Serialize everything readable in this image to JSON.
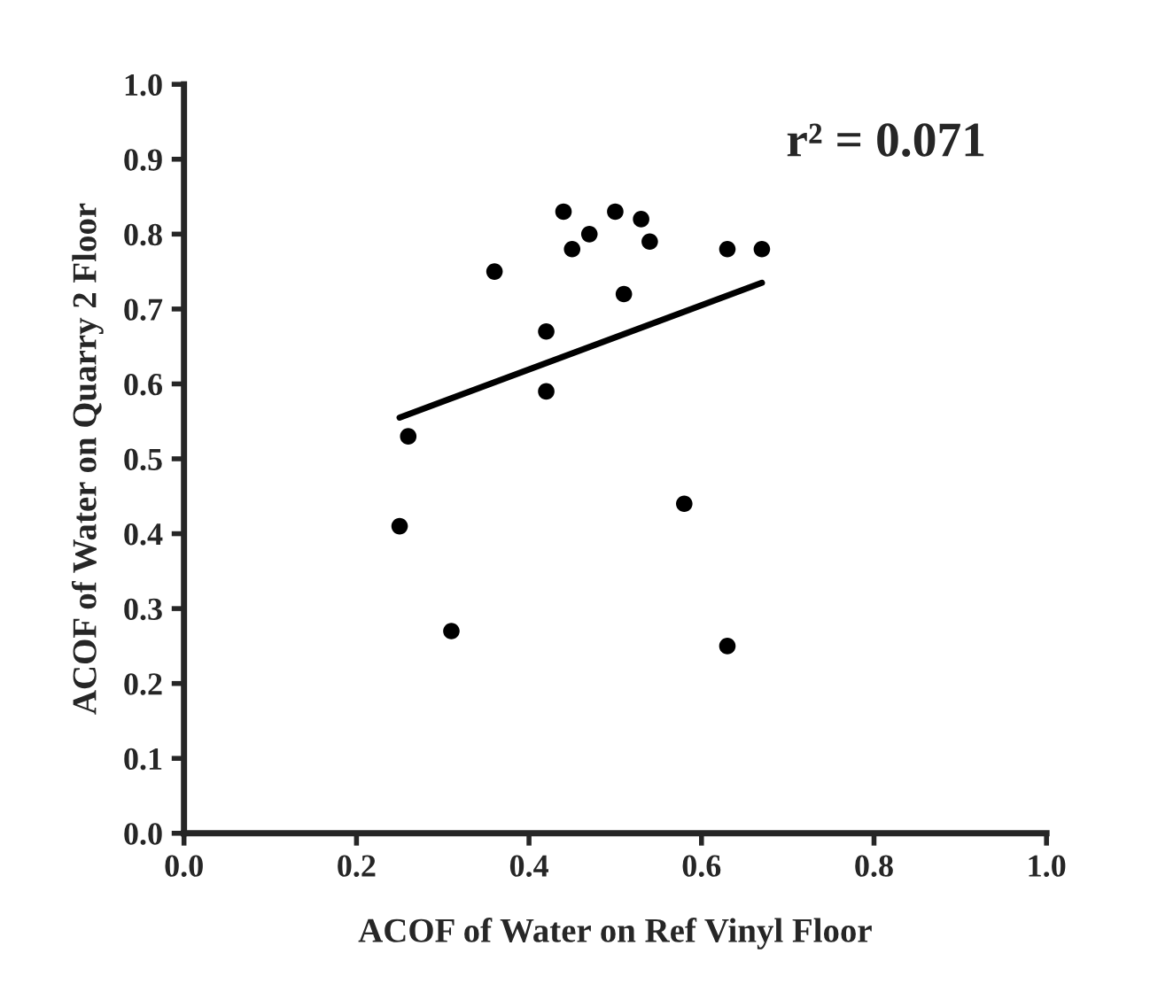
{
  "chart_data": {
    "type": "scatter",
    "xlabel": "ACOF of Water on Ref Vinyl Floor",
    "ylabel": "ACOF of Water on Quarry 2 Floor",
    "annotations": [
      "r² = 0.071"
    ],
    "series": [
      {
        "color": "#000000",
        "marker": "circle",
        "x": [
          0.25,
          0.26,
          0.31,
          0.36,
          0.42,
          0.42,
          0.44,
          0.45,
          0.47,
          0.5,
          0.51,
          0.53,
          0.54,
          0.58,
          0.63,
          0.63,
          0.67
        ],
        "values": [
          0.41,
          0.53,
          0.27,
          0.75,
          0.67,
          0.59,
          0.83,
          0.78,
          0.8,
          0.83,
          0.72,
          0.82,
          0.79,
          0.44,
          0.78,
          0.25,
          0.78
        ]
      },
      {
        "type": "line",
        "color": "#000000",
        "marker": "none",
        "line_style": "solid",
        "x": [
          0.25,
          0.67
        ],
        "values": [
          0.555,
          0.735
        ]
      }
    ],
    "grid": false,
    "legend": false,
    "xlim": [
      0.0,
      1.0
    ],
    "xticks": [
      {
        "value": 0,
        "label": "0.0"
      },
      0.2,
      0.4,
      0.6,
      0.8,
      {
        "value": 1,
        "label": "1.0"
      }
    ],
    "ylim": [
      0.0,
      1.0
    ],
    "yticks": [
      {
        "value": 0,
        "label": "0.0"
      },
      0.1,
      0.2,
      0.3,
      0.4,
      0.5,
      0.6,
      0.7,
      0.8,
      0.9,
      {
        "value": 1,
        "label": "1.0"
      }
    ]
  }
}
